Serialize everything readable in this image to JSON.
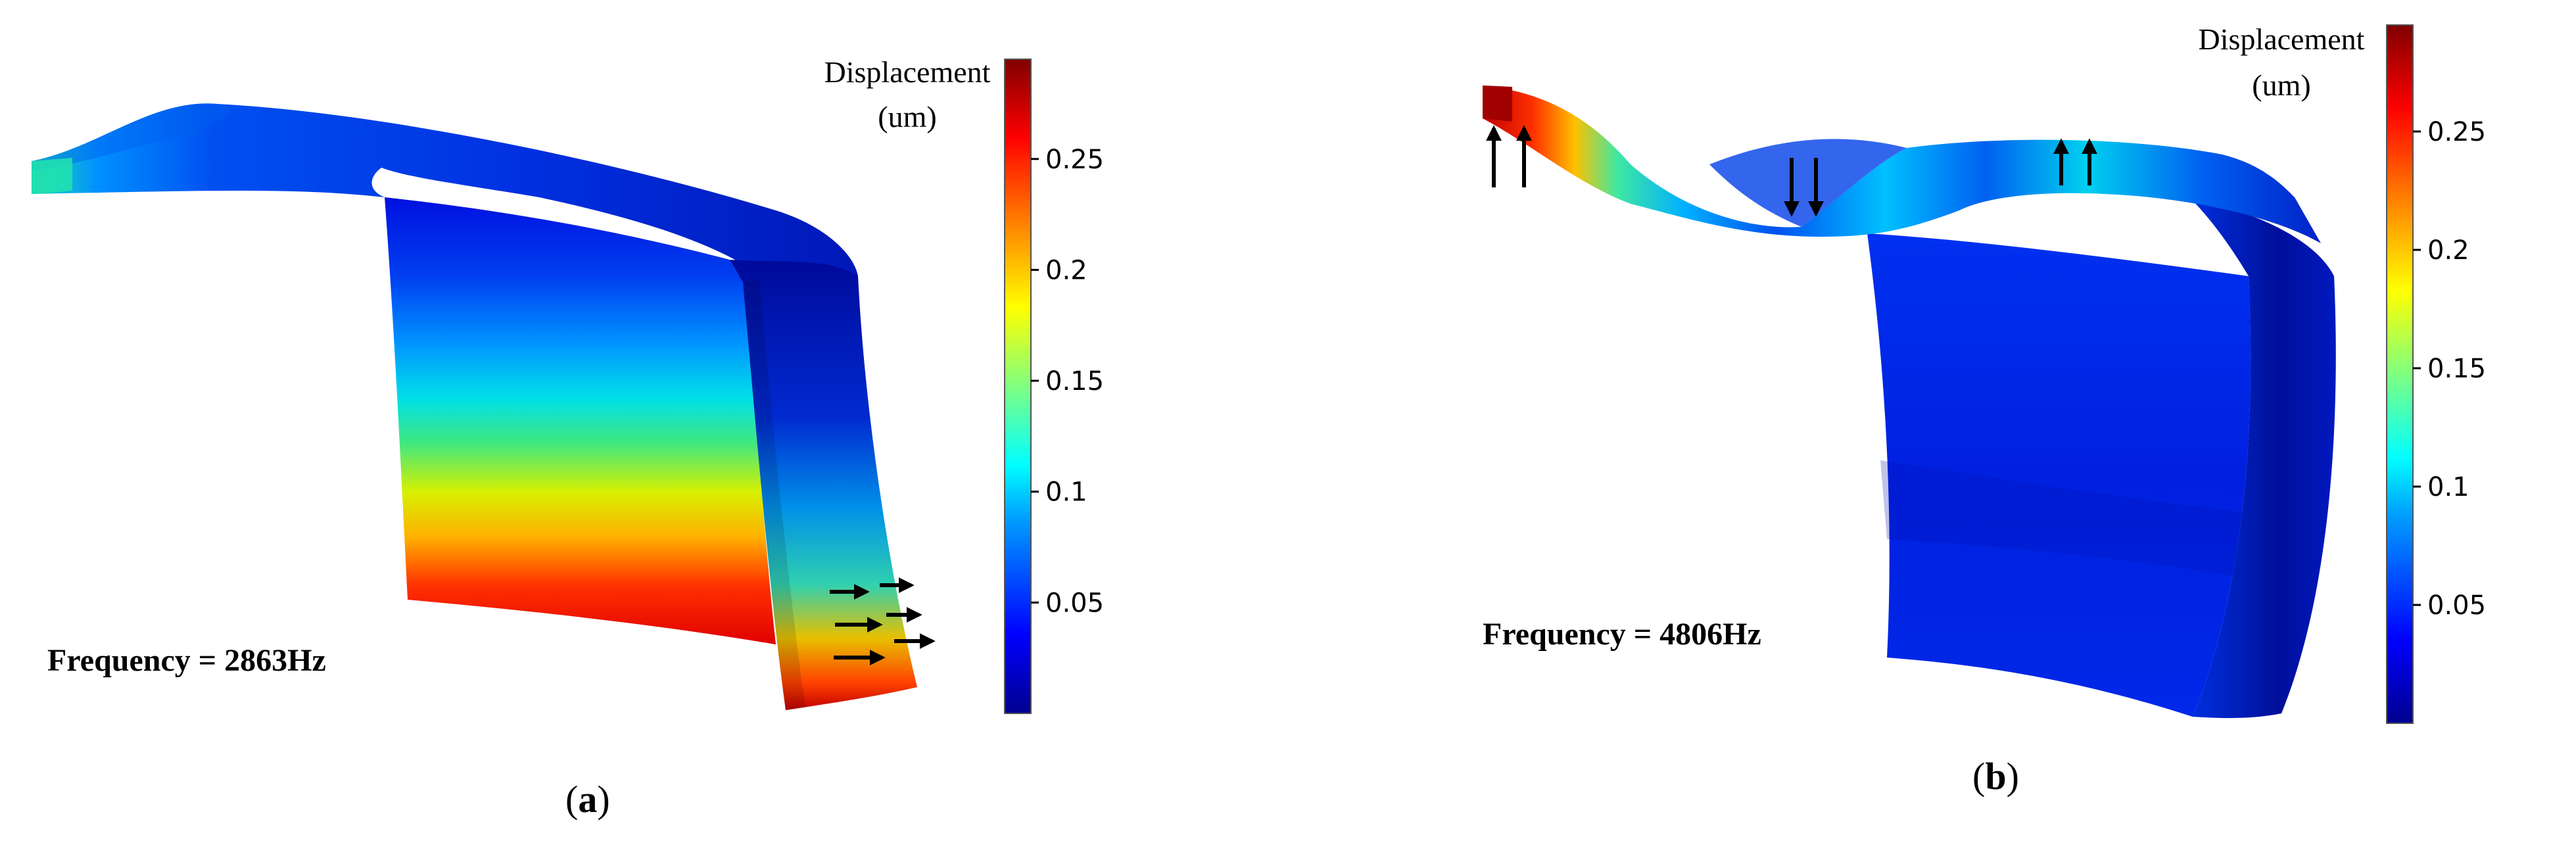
{
  "panels": [
    {
      "id": "a",
      "label_open": "(",
      "label_letter": "a",
      "label_close": ")",
      "frequency_text": "Frequency = 2863Hz",
      "mode_arrows": "right"
    },
    {
      "id": "b",
      "label_open": "(",
      "label_letter": "b",
      "label_close": ")",
      "frequency_text": "Frequency = 4806Hz",
      "mode_arrows": "up-down"
    }
  ],
  "colorbar": {
    "title_line1": "Displacement",
    "title_line2": "(um)",
    "ticks": [
      "0.25",
      "0.2",
      "0.15",
      "0.1",
      "0.05"
    ],
    "colormap": [
      "#00008f",
      "#0000ff",
      "#00a0ff",
      "#00ffff",
      "#80ff80",
      "#ffff00",
      "#ff8000",
      "#ff0000",
      "#800000"
    ]
  }
}
